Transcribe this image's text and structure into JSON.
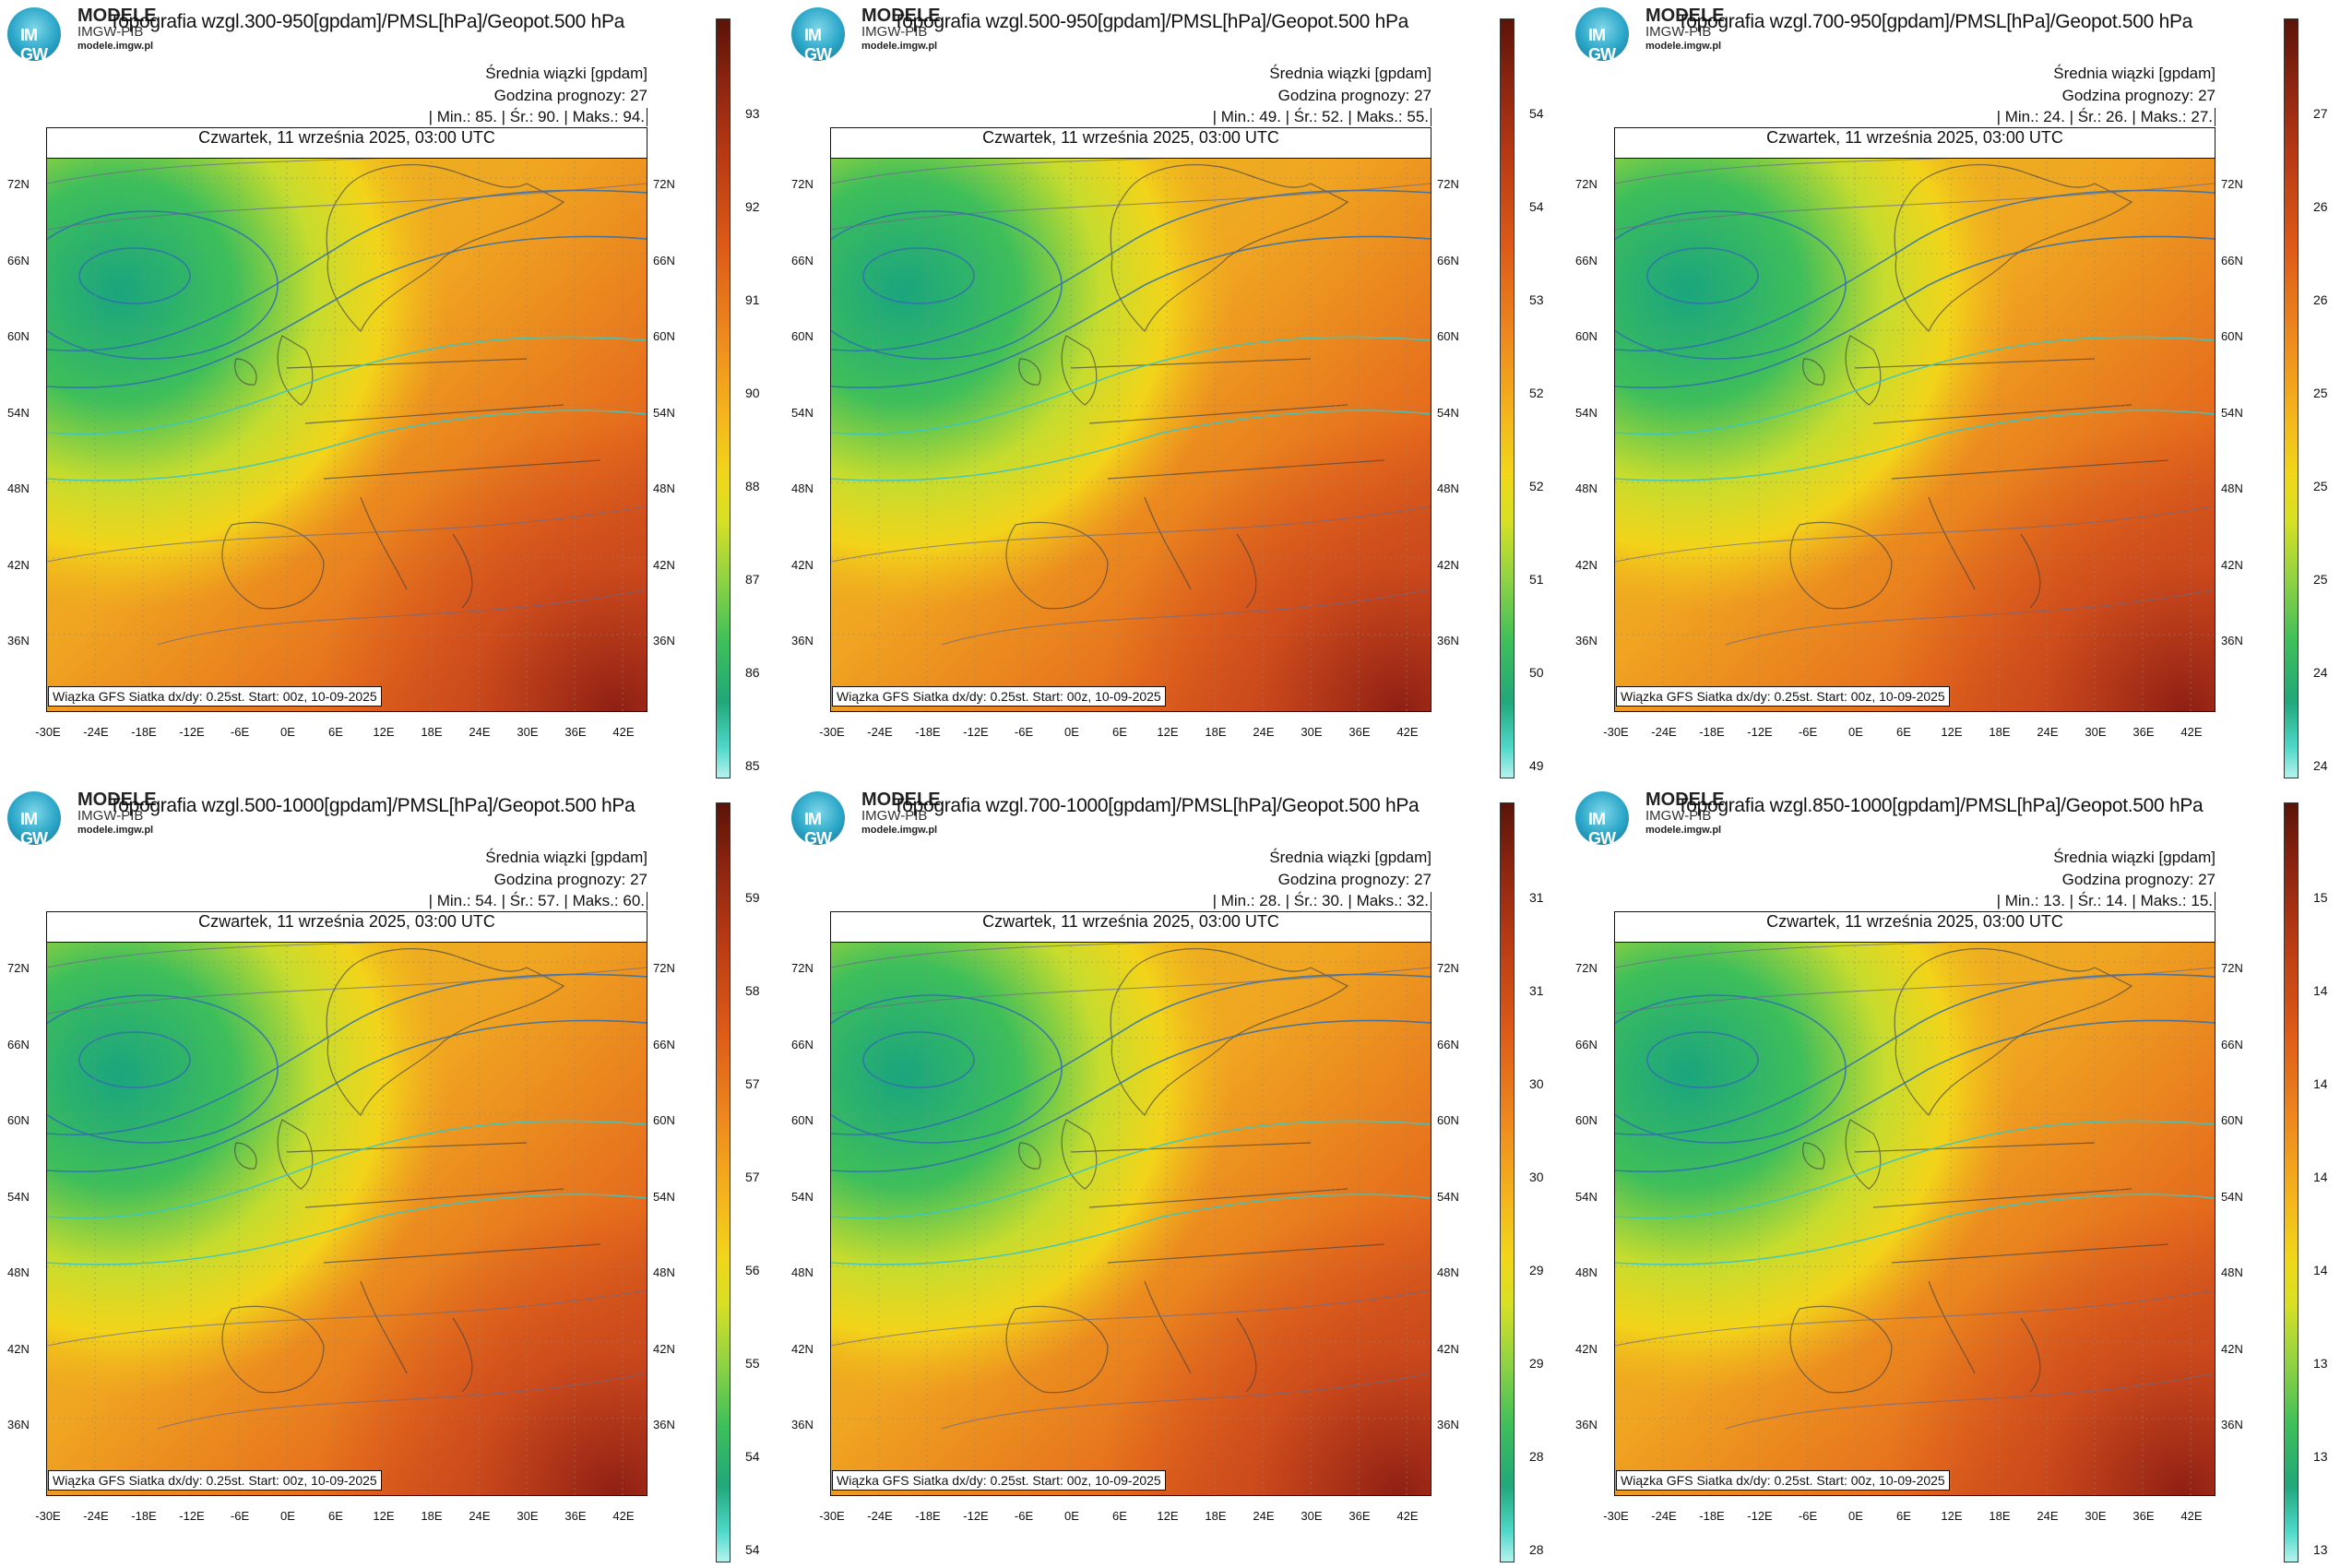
{
  "brand": {
    "top": "MODELE",
    "mid": "IMGW-PIB",
    "url": "modele.imgw.pl",
    "logo_text": "IM GW"
  },
  "common": {
    "subtitle": "Średnia wiązki [gpdam]",
    "forecast_hour": "Godzina prognozy: 27",
    "date": "Czwartek, 11 września 2025, 03:00 UTC",
    "footer": "Wiązka GFS Siatka dx/dy: 0.25st. Start: 00z, 10-09-2025",
    "min_label": "Min.:",
    "avg_label": "Śr.:",
    "max_label": "Maks.:",
    "lat_labels": [
      "72N",
      "66N",
      "60N",
      "54N",
      "48N",
      "42N",
      "36N"
    ],
    "lon_labels": [
      "-30E",
      "-24E",
      "-18E",
      "-12E",
      "-6E",
      "0E",
      "6E",
      "12E",
      "18E",
      "24E",
      "30E",
      "36E",
      "42E"
    ]
  },
  "panels": [
    {
      "title": "Topografia wzgl.300-950[gpdam]/PMSL[hPa]/Geopot.500 hPa",
      "min": "85.",
      "avg": "90.",
      "max": "94.",
      "ticks": [
        "93",
        "92",
        "91",
        "90",
        "88",
        "87",
        "86",
        "85"
      ]
    },
    {
      "title": "Topografia wzgl.500-950[gpdam]/PMSL[hPa]/Geopot.500 hPa",
      "min": "49.",
      "avg": "52.",
      "max": "55.",
      "ticks": [
        "54",
        "54",
        "53",
        "52",
        "52",
        "51",
        "50",
        "49"
      ]
    },
    {
      "title": "Topografia wzgl.700-950[gpdam]/PMSL[hPa]/Geopot.500 hPa",
      "min": "24.",
      "avg": "26.",
      "max": "27.",
      "ticks": [
        "27",
        "26",
        "26",
        "25",
        "25",
        "25",
        "24",
        "24"
      ]
    },
    {
      "title": "Topografia wzgl.500-1000[gpdam]/PMSL[hPa]/Geopot.500 hPa",
      "min": "54.",
      "avg": "57.",
      "max": "60.",
      "ticks": [
        "59",
        "58",
        "57",
        "57",
        "56",
        "55",
        "54",
        "54"
      ]
    },
    {
      "title": "Topografia wzgl.700-1000[gpdam]/PMSL[hPa]/Geopot.500 hPa",
      "min": "28.",
      "avg": "30.",
      "max": "32.",
      "ticks": [
        "31",
        "31",
        "30",
        "30",
        "29",
        "29",
        "28",
        "28"
      ]
    },
    {
      "title": "Topografia wzgl.850-1000[gpdam]/PMSL[hPa]/Geopot.500 hPa",
      "min": "13.",
      "avg": "14.",
      "max": "15.",
      "ticks": [
        "15",
        "14",
        "14",
        "14",
        "14",
        "13",
        "13",
        "13"
      ]
    }
  ]
}
